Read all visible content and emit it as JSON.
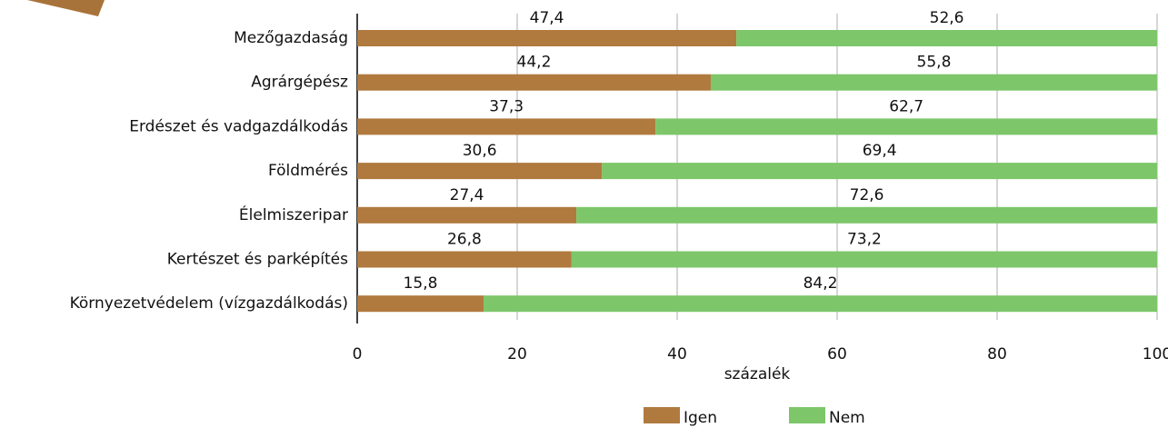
{
  "chart_data": {
    "type": "stacked-bar-horizontal",
    "x_label": "százalék",
    "categories": [
      "Mezőgazdaság",
      "Agrárgépész",
      "Erdészet és vadgazdálkodás",
      "Földmérés",
      "Élelmiszeripar",
      "Kertészet és parképítés",
      "Környezetvédelem (vízgazdálkodás)"
    ],
    "series": [
      {
        "name": "Igen",
        "color": "#b07a3e",
        "values": [
          47.4,
          44.2,
          37.3,
          30.6,
          27.4,
          26.8,
          15.8
        ],
        "value_labels": [
          "47,4",
          "44,2",
          "37,3",
          "30,6",
          "27,4",
          "26,8",
          "15,8"
        ]
      },
      {
        "name": "Nem",
        "color": "#7dc66a",
        "values": [
          52.6,
          55.8,
          62.7,
          69.4,
          72.6,
          73.2,
          84.2
        ],
        "value_labels": [
          "52,6",
          "55,8",
          "62,7",
          "69,4",
          "72,6",
          "73,2",
          "84,2"
        ]
      }
    ],
    "xlim": [
      0,
      100
    ],
    "xticks": [
      0,
      20,
      40,
      60,
      80,
      100
    ],
    "grid": true,
    "legend": "bottom"
  }
}
